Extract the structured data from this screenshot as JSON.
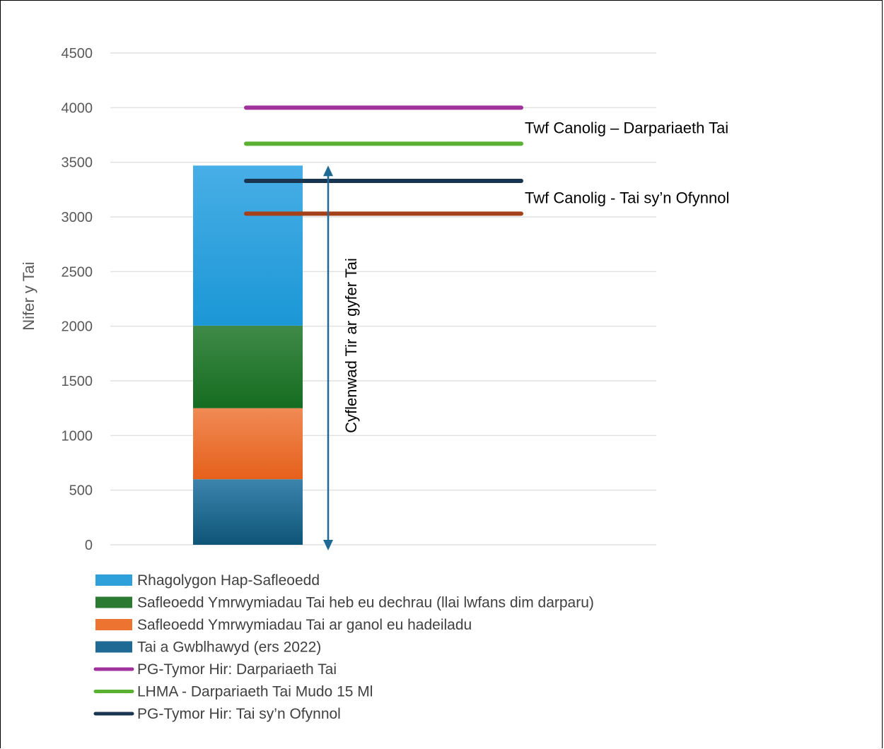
{
  "chart_data": {
    "type": "bar",
    "ylabel": "Nifer y Tai",
    "xlabel": "",
    "ylim": [
      0,
      4500
    ],
    "yticks": [
      0,
      500,
      1000,
      1500,
      2000,
      2500,
      3000,
      3500,
      4000,
      4500
    ],
    "grid": true,
    "legend_position": "bottom-left",
    "stacked_bar": [
      {
        "name": "Tai a Gwblhawyd (ers 2022)",
        "value": 600,
        "color": "#1f6a94"
      },
      {
        "name": "Safleoedd Ymrwymiadau Tai ar ganol eu hadeiladu",
        "value": 650,
        "color": "#ec7330"
      },
      {
        "name": "Safleoedd Ymrwymiadau Tai heb eu dechrau (llai lwfans dim darparu)",
        "value": 755,
        "color": "#2a7a32"
      },
      {
        "name": "Rhagolygon Hap-Safleoedd",
        "value": 1465,
        "color": "#2fa0da"
      }
    ],
    "lines": [
      {
        "name": "PG-Tymor Hir: Darpariaeth Tai",
        "value": 4000,
        "color": "#a0329c"
      },
      {
        "name": "LHMA - Darpariaeth Tai Mudo 15 Ml",
        "value": 3670,
        "color": "#5ab030"
      },
      {
        "name": "PG-Tymor Hir: Tai sy’n Ofynnol",
        "value": 3330,
        "color": "#1a3550"
      },
      {
        "name": "",
        "value": 3030,
        "color": "#a54118"
      }
    ],
    "arrow": {
      "from": 0,
      "to": 3470,
      "color": "#1f6a94",
      "label": "Cyflenwad Tir ar gyfer Tai"
    },
    "annotations": [
      {
        "text": "Twf Canolig – Darpariaeth Tai",
        "near": 3670
      },
      {
        "text": "Twf Canolig - Tai sy’n Ofynnol",
        "near": 3030
      }
    ],
    "legend": [
      {
        "label": "Rhagolygon Hap-Safleoedd",
        "kind": "box",
        "color": "#2fa0da"
      },
      {
        "label": "Safleoedd Ymrwymiadau Tai heb eu dechrau (llai lwfans dim darparu)",
        "kind": "box",
        "color": "#2a7a32"
      },
      {
        "label": "Safleoedd Ymrwymiadau Tai ar ganol eu hadeiladu",
        "kind": "box",
        "color": "#ec7330"
      },
      {
        "label": "Tai a Gwblhawyd (ers 2022)",
        "kind": "box",
        "color": "#1f6a94"
      },
      {
        "label": "PG-Tymor Hir: Darpariaeth Tai",
        "kind": "line",
        "color": "#a0329c"
      },
      {
        "label": "LHMA - Darpariaeth Tai Mudo 15 Ml",
        "kind": "line",
        "color": "#5ab030"
      },
      {
        "label": "PG-Tymor Hir: Tai sy’n Ofynnol",
        "kind": "line",
        "color": "#1a3550"
      }
    ]
  }
}
